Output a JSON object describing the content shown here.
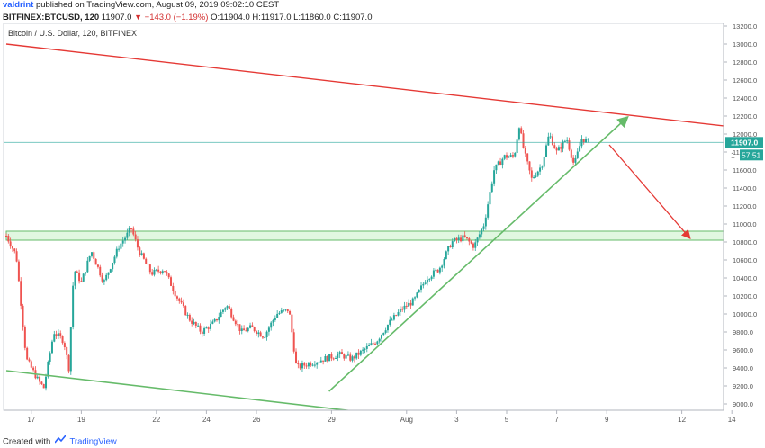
{
  "header": {
    "author": "valdrint",
    "published_text": "published on TradingView.com, August 09, 2019 09:02:10 CEST",
    "symbol": "BITFINEX:BTCUSD, 120",
    "last": "11907.0",
    "arrow": "▼",
    "change": "−143.0 (−1.19%)",
    "ohlc": "O:11904.0 H:11917.0 L:11860.0 C:11907.0"
  },
  "chart_data": {
    "type": "candlestick",
    "title": "Bitcoin / U.S. Dollar, 120, BITFINEX",
    "ylim": [
      8900,
      13300
    ],
    "yticks": [
      9000,
      9200,
      9400,
      9600,
      9800,
      10000,
      10200,
      10400,
      10600,
      10800,
      11000,
      11200,
      11400,
      11600,
      11800,
      12000,
      12200,
      12400,
      12600,
      12800,
      13000,
      13200
    ],
    "xlim": [
      16,
      14.6
    ],
    "xticks": [
      "17",
      "19",
      "22",
      "24",
      "26",
      "29",
      "Aug",
      "3",
      "5",
      "7",
      "9",
      "12",
      "14"
    ],
    "last_price_label": "11907.0",
    "countdown_label": "57:51",
    "countdown_prefix": "1",
    "colors": {
      "up": "#26a69a",
      "down": "#ef5350",
      "resistance": "#e53935",
      "support": "#66bb6a",
      "zone": "#c8f0c8"
    },
    "price_anchors": [
      {
        "d": 16.0,
        "p": 10870
      },
      {
        "d": 16.4,
        "p": 10650
      },
      {
        "d": 16.8,
        "p": 9500
      },
      {
        "d": 17.3,
        "p": 9250
      },
      {
        "d": 17.5,
        "p": 9180
      },
      {
        "d": 17.9,
        "p": 9800
      },
      {
        "d": 18.3,
        "p": 9700
      },
      {
        "d": 18.5,
        "p": 9400
      },
      {
        "d": 18.7,
        "p": 10500
      },
      {
        "d": 19.0,
        "p": 10350
      },
      {
        "d": 19.4,
        "p": 10700
      },
      {
        "d": 19.9,
        "p": 10350
      },
      {
        "d": 20.5,
        "p": 10750
      },
      {
        "d": 21.0,
        "p": 10950
      },
      {
        "d": 21.3,
        "p": 10700
      },
      {
        "d": 21.8,
        "p": 10450
      },
      {
        "d": 22.3,
        "p": 10500
      },
      {
        "d": 22.8,
        "p": 10200
      },
      {
        "d": 23.3,
        "p": 9950
      },
      {
        "d": 23.8,
        "p": 9800
      },
      {
        "d": 24.3,
        "p": 9900
      },
      {
        "d": 24.8,
        "p": 10100
      },
      {
        "d": 25.4,
        "p": 9800
      },
      {
        "d": 25.8,
        "p": 9850
      },
      {
        "d": 26.3,
        "p": 9750
      },
      {
        "d": 26.8,
        "p": 10000
      },
      {
        "d": 27.3,
        "p": 10050
      },
      {
        "d": 27.6,
        "p": 9400
      },
      {
        "d": 28.1,
        "p": 9450
      },
      {
        "d": 28.7,
        "p": 9500
      },
      {
        "d": 29.3,
        "p": 9550
      },
      {
        "d": 29.8,
        "p": 9500
      },
      {
        "d": 30.3,
        "p": 9600
      },
      {
        "d": 30.8,
        "p": 9700
      },
      {
        "d": 31.3,
        "p": 9900
      },
      {
        "d": 31.8,
        "p": 10050
      },
      {
        "d": 32.3,
        "p": 10150
      },
      {
        "d": 32.8,
        "p": 10400
      },
      {
        "d": 33.3,
        "p": 10500
      },
      {
        "d": 33.8,
        "p": 10800
      },
      {
        "d": 34.3,
        "p": 10850
      },
      {
        "d": 34.7,
        "p": 10750
      },
      {
        "d": 35.1,
        "p": 11000
      },
      {
        "d": 35.5,
        "p": 11600
      },
      {
        "d": 35.9,
        "p": 11750
      },
      {
        "d": 36.3,
        "p": 11750
      },
      {
        "d": 36.5,
        "p": 12100
      },
      {
        "d": 36.7,
        "p": 11800
      },
      {
        "d": 37.0,
        "p": 11500
      },
      {
        "d": 37.4,
        "p": 11650
      },
      {
        "d": 37.7,
        "p": 12000
      },
      {
        "d": 38.0,
        "p": 11800
      },
      {
        "d": 38.4,
        "p": 11950
      },
      {
        "d": 38.7,
        "p": 11650
      },
      {
        "d": 39.0,
        "p": 11950
      },
      {
        "d": 39.3,
        "p": 11907
      }
    ],
    "annotations": {
      "resistance_line": [
        {
          "d": 16.0,
          "p": 13000
        },
        {
          "d": 45.0,
          "p": 12080
        }
      ],
      "lower_support_line": [
        {
          "d": 16.0,
          "p": 9370
        },
        {
          "d": 29.9,
          "p": 8920
        }
      ],
      "ascending_support": [
        {
          "d": 28.9,
          "p": 9140
        },
        {
          "d": 40.8,
          "p": 12180
        }
      ],
      "zone": {
        "d0": 16.0,
        "d1": 44.9,
        "p0": 10820,
        "p1": 10920
      },
      "projection_arrow": [
        {
          "d": 40.1,
          "p": 11880
        },
        {
          "d": 43.3,
          "p": 10850
        }
      ]
    }
  },
  "footer": {
    "created_with": "Created with",
    "brand": "TradingView"
  }
}
